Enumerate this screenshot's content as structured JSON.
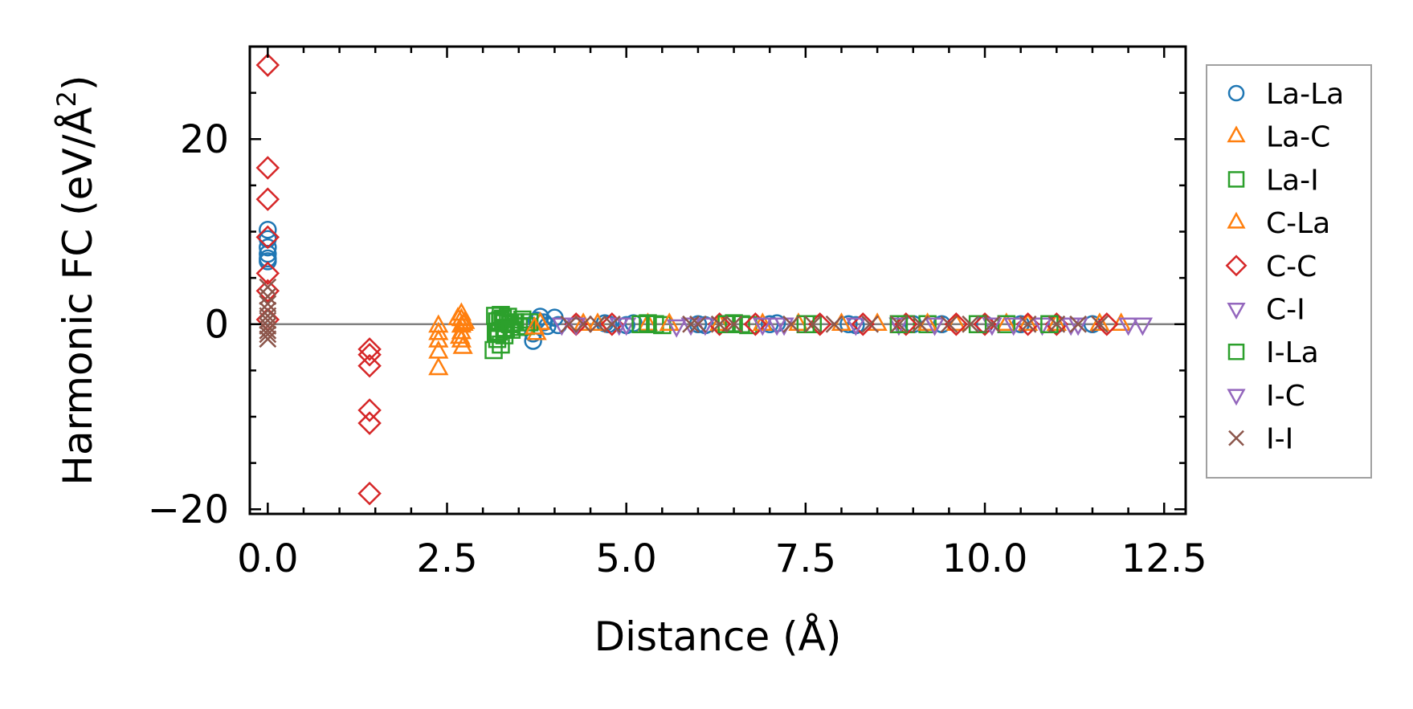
{
  "chart_data": {
    "type": "scatter",
    "title": "",
    "xlabel": "Distance (Å)",
    "ylabel_main": "Harmonic FC (eV/Å",
    "ylabel_sup": "2",
    "ylabel_close": ")",
    "xlim": [
      -0.25,
      12.8
    ],
    "ylim": [
      -20.5,
      30
    ],
    "xticks": [
      0.0,
      2.5,
      5.0,
      7.5,
      10.0,
      12.5
    ],
    "xtick_labels": [
      "0.0",
      "2.5",
      "5.0",
      "7.5",
      "10.0",
      "12.5"
    ],
    "yticks": [
      -20,
      0,
      20
    ],
    "ytick_labels": [
      "−20",
      "0",
      "20"
    ],
    "reference_line_y": 0,
    "legend_position": "outside-right",
    "series": [
      {
        "name": "La-La",
        "marker": "circle",
        "color": "#1f77b4",
        "x": [
          0,
          0,
          0,
          0,
          0,
          0,
          3.7,
          3.7,
          3.75,
          3.8,
          3.85,
          3.9,
          4.0,
          4.05,
          4.7,
          4.75,
          5.0,
          5.1,
          6.0,
          6.1,
          7.0,
          7.1,
          8.1,
          8.2,
          9.0,
          9.4,
          10.0,
          10.5,
          11.0,
          11.5
        ],
        "y": [
          10.2,
          9.2,
          8.3,
          7.6,
          7.1,
          6.8,
          -1.8,
          -1.0,
          0.4,
          0.8,
          0.2,
          -0.2,
          0.7,
          -0.1,
          0.1,
          0.0,
          -0.1,
          0.1,
          0.0,
          -0.1,
          0.0,
          0.1,
          0.0,
          -0.1,
          0.0,
          0.0,
          0.0,
          0.0,
          0.0,
          0.0
        ]
      },
      {
        "name": "La-C",
        "marker": "triangle-up",
        "color": "#ff7f0e",
        "x": [
          2.38,
          2.38,
          2.38,
          2.38,
          2.38,
          2.7,
          2.7,
          2.7,
          2.7,
          2.7,
          2.72,
          2.75,
          3.75,
          3.8,
          4.6,
          5.3,
          6.3,
          7.4,
          8.5,
          9.6,
          10.3,
          11.0,
          11.9
        ],
        "y": [
          -4.8,
          -3.0,
          -1.8,
          -1.0,
          -0.2,
          1.1,
          0.5,
          -0.2,
          -0.9,
          -1.8,
          -2.5,
          0.2,
          -1.0,
          0.1,
          0.0,
          0.0,
          0.0,
          0.0,
          0.0,
          0.0,
          0.0,
          0.0,
          0.0
        ]
      },
      {
        "name": "La-I",
        "marker": "square",
        "color": "#2ca02c",
        "x": [
          3.15,
          3.17,
          3.2,
          3.2,
          3.22,
          3.25,
          3.25,
          3.28,
          3.3,
          3.3,
          3.32,
          3.35,
          3.4,
          3.45,
          3.5,
          3.55,
          3.6,
          3.65,
          5.3,
          5.4,
          5.5,
          6.5,
          6.6,
          6.7,
          7.6,
          8.9,
          9.2,
          10.3
        ],
        "y": [
          -2.8,
          0.9,
          -1.6,
          0.3,
          -0.8,
          1.0,
          -2.2,
          0.6,
          -1.2,
          0.1,
          -0.4,
          0.8,
          -0.6,
          0.2,
          -0.3,
          0.5,
          -0.2,
          0.2,
          0.1,
          0.0,
          -0.1,
          0.1,
          0.0,
          -0.1,
          0.0,
          0.0,
          0.0,
          0.0
        ]
      },
      {
        "name": "C-La",
        "marker": "triangle-up",
        "color": "#ff7f0e",
        "x": [
          2.65,
          2.68,
          2.73,
          3.72,
          4.4,
          5.6,
          6.9,
          8.0,
          9.2,
          10.6,
          11.6
        ],
        "y": [
          0.6,
          -1.4,
          0.0,
          -0.4,
          0.0,
          0.0,
          0.0,
          0.0,
          0.0,
          0.0,
          0.0
        ]
      },
      {
        "name": "C-C",
        "marker": "diamond",
        "color": "#d62728",
        "x": [
          0,
          0,
          0,
          0,
          0,
          0,
          0,
          1.42,
          1.42,
          1.42,
          1.42,
          1.42,
          1.42,
          4.3,
          4.8,
          6.3,
          6.8,
          7.7,
          8.3,
          8.9,
          9.6,
          10.0,
          10.6,
          11.0,
          11.7
        ],
        "y": [
          28.0,
          16.9,
          13.5,
          9.4,
          5.5,
          3.6,
          0.5,
          -2.7,
          -3.3,
          -4.5,
          -9.3,
          -10.7,
          -18.3,
          0.0,
          0.0,
          0.0,
          0.0,
          0.0,
          0.0,
          0.0,
          0.0,
          0.0,
          0.0,
          0.0,
          0.0
        ]
      },
      {
        "name": "C-I",
        "marker": "triangle-down",
        "color": "#9467bd",
        "x": [
          4.3,
          5.0,
          5.7,
          6.1,
          6.9,
          7.2,
          8.2,
          8.8,
          9.3,
          10.1,
          10.8,
          11.3,
          12.2
        ],
        "y": [
          0.0,
          0.0,
          -0.2,
          0.0,
          0.0,
          0.0,
          0.0,
          0.0,
          0.0,
          0.0,
          0.0,
          0.0,
          0.0
        ]
      },
      {
        "name": "I-La",
        "marker": "square",
        "color": "#2ca02c",
        "x": [
          3.18,
          3.24,
          3.3,
          3.38,
          5.2,
          6.4,
          7.5,
          8.8,
          9.9,
          10.9
        ],
        "y": [
          -1.0,
          0.4,
          -0.6,
          0.0,
          0.0,
          0.0,
          0.0,
          0.0,
          0.0,
          0.0
        ]
      },
      {
        "name": "I-C",
        "marker": "triangle-down",
        "color": "#9467bd",
        "x": [
          4.1,
          4.9,
          5.9,
          7.1,
          8.2,
          9.3,
          10.4,
          11.2,
          12.0
        ],
        "y": [
          0.0,
          0.0,
          0.0,
          0.0,
          0.0,
          0.0,
          0.0,
          0.0,
          0.0
        ]
      },
      {
        "name": "I-I",
        "marker": "x",
        "color": "#8c564b",
        "x": [
          0,
          0,
          0,
          0,
          0,
          0,
          0,
          0,
          0,
          0,
          4.2,
          4.4,
          4.6,
          4.8,
          5.9,
          6.0,
          6.3,
          6.5,
          7.3,
          7.6,
          7.9,
          8.4,
          8.8,
          9.1,
          9.5,
          9.8,
          10.1,
          10.6,
          11.0,
          11.3,
          11.6
        ],
        "y": [
          4.0,
          3.0,
          2.2,
          1.5,
          0.9,
          0.4,
          -0.2,
          -0.7,
          -1.1,
          -1.6,
          0.0,
          0.0,
          0.0,
          0.0,
          0.0,
          0.0,
          0.0,
          0.0,
          0.0,
          0.0,
          0.0,
          0.0,
          0.0,
          0.0,
          0.0,
          0.0,
          0.0,
          0.0,
          0.0,
          0.0,
          0.0
        ]
      }
    ]
  }
}
